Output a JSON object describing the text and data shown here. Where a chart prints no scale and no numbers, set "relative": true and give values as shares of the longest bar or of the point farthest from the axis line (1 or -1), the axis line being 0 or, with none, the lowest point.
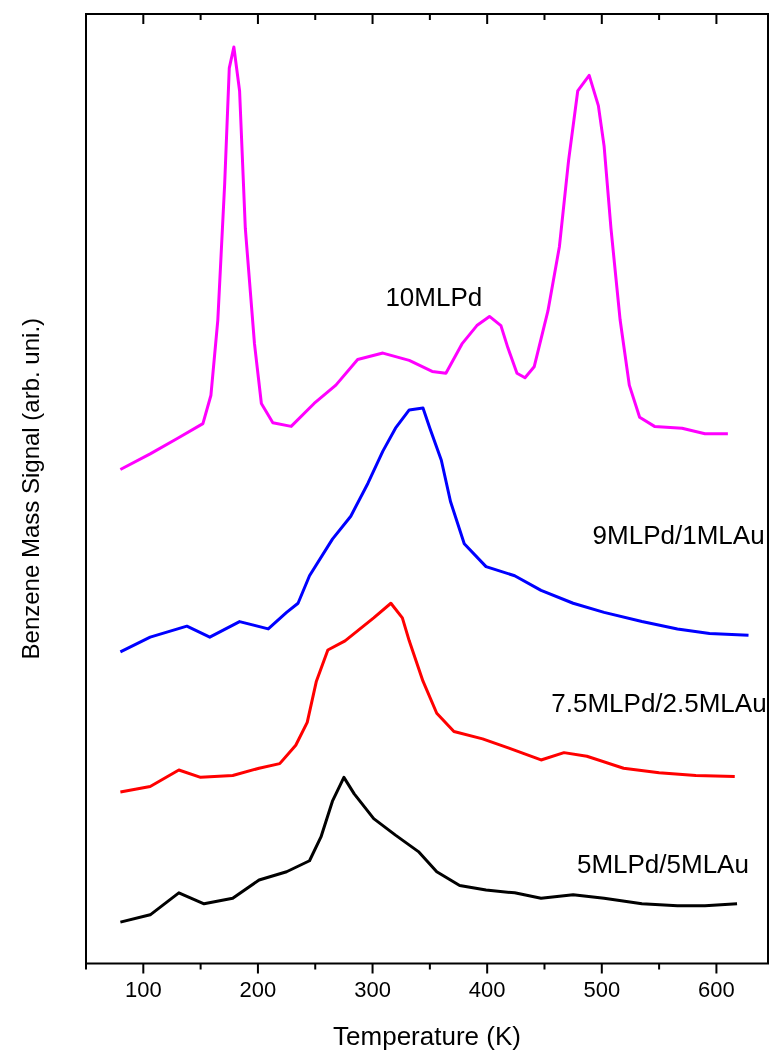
{
  "chart_data": {
    "type": "line",
    "relative": true,
    "xlabel": "Temperature (K)",
    "ylabel": "Benzene Mass Signal (arb. uni.)",
    "xlim": [
      50,
      645
    ],
    "xticks": [
      {
        "value": 50,
        "label": null
      },
      100,
      {
        "value": 150,
        "label": null
      },
      200,
      {
        "value": 250,
        "label": null
      },
      300,
      {
        "value": 350,
        "label": null
      },
      400,
      {
        "value": 450,
        "label": null
      },
      500,
      {
        "value": 550,
        "label": null
      },
      600
    ],
    "legend": false,
    "marker": "none",
    "line_style": "solid",
    "series": [
      {
        "name": "10MLPd",
        "color": "#ff00ff",
        "x": [
          80,
          106,
          130,
          152,
          159,
          165,
          171,
          175,
          179,
          184,
          189,
          197,
          203,
          213,
          229,
          249,
          268,
          287,
          309,
          332,
          352,
          364,
          378,
          391,
          402,
          412,
          418,
          426,
          433,
          441,
          453,
          463,
          471,
          479,
          489,
          497,
          502,
          508,
          516,
          524,
          533,
          546,
          570,
          590,
          610
        ],
        "values": [
          0.539,
          0.556,
          0.573,
          0.589,
          0.62,
          0.702,
          0.851,
          0.977,
          1.0,
          0.952,
          0.802,
          0.676,
          0.611,
          0.59,
          0.586,
          0.611,
          0.631,
          0.659,
          0.666,
          0.658,
          0.646,
          0.644,
          0.676,
          0.696,
          0.706,
          0.696,
          0.672,
          0.644,
          0.639,
          0.651,
          0.712,
          0.782,
          0.876,
          0.952,
          0.969,
          0.936,
          0.892,
          0.802,
          0.702,
          0.631,
          0.596,
          0.586,
          0.584,
          0.578,
          0.578
        ]
      },
      {
        "name": "9MLPd/1MLAu",
        "color": "#0000ff",
        "x": [
          80,
          106,
          138,
          158,
          184,
          209,
          225,
          235,
          245,
          265,
          281,
          296,
          309,
          320,
          332,
          344,
          350,
          360,
          368,
          380,
          399,
          424,
          447,
          475,
          502,
          535,
          566,
          594,
          628
        ],
        "values": [
          0.34,
          0.356,
          0.368,
          0.356,
          0.373,
          0.365,
          0.383,
          0.393,
          0.423,
          0.463,
          0.488,
          0.524,
          0.559,
          0.584,
          0.604,
          0.606,
          0.584,
          0.549,
          0.504,
          0.458,
          0.433,
          0.423,
          0.407,
          0.393,
          0.383,
          0.373,
          0.365,
          0.36,
          0.358
        ]
      },
      {
        "name": "7.5MLPd/2.5MLAu",
        "color": "#ff0000",
        "x": [
          80,
          106,
          131,
          150,
          178,
          201,
          219,
          233,
          243,
          251,
          261,
          276,
          301,
          316,
          326,
          332,
          344,
          356,
          371,
          396,
          419,
          447,
          467,
          487,
          519,
          550,
          582,
          616
        ],
        "values": [
          0.187,
          0.193,
          0.211,
          0.203,
          0.205,
          0.213,
          0.218,
          0.238,
          0.263,
          0.308,
          0.342,
          0.352,
          0.377,
          0.393,
          0.377,
          0.352,
          0.308,
          0.273,
          0.253,
          0.245,
          0.235,
          0.222,
          0.23,
          0.226,
          0.213,
          0.208,
          0.205,
          0.204
        ]
      },
      {
        "name": "5MLPd/5MLAu",
        "color": "#000000",
        "x": [
          80,
          106,
          131,
          153,
          178,
          201,
          225,
          245,
          255,
          265,
          275,
          284,
          301,
          320,
          340,
          356,
          376,
          399,
          424,
          447,
          475,
          502,
          535,
          566,
          590,
          618
        ],
        "values": [
          0.045,
          0.053,
          0.077,
          0.065,
          0.071,
          0.091,
          0.1,
          0.112,
          0.138,
          0.177,
          0.203,
          0.185,
          0.158,
          0.14,
          0.122,
          0.1,
          0.085,
          0.08,
          0.077,
          0.071,
          0.075,
          0.071,
          0.065,
          0.063,
          0.063,
          0.065
        ]
      }
    ]
  }
}
